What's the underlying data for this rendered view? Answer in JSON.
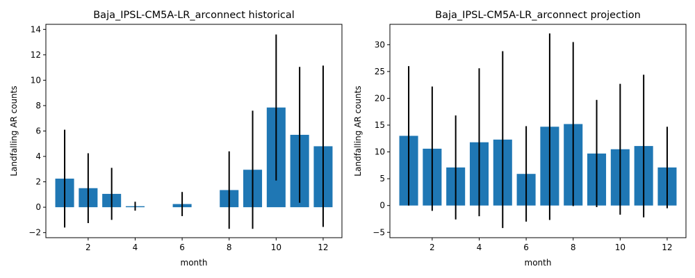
{
  "chart_data": [
    {
      "type": "bar",
      "title": "Baja_IPSL-CM5A-LR_arconnect historical",
      "xlabel": "month",
      "ylabel": "Landfalling AR counts",
      "xlim": [
        0.2,
        12.8
      ],
      "ylim": [
        -2.4,
        14.4
      ],
      "xticks": [
        2,
        4,
        6,
        8,
        10,
        12
      ],
      "yticks": [
        -2,
        0,
        2,
        4,
        6,
        8,
        10,
        12,
        14
      ],
      "x": [
        1,
        2,
        3,
        4,
        5,
        6,
        7,
        8,
        9,
        10,
        11,
        12
      ],
      "values": [
        2.25,
        1.5,
        1.05,
        0.08,
        0.0,
        0.25,
        0.0,
        1.35,
        2.95,
        7.85,
        5.7,
        4.8
      ],
      "errors": [
        3.85,
        2.75,
        2.05,
        0.35,
        0.0,
        0.95,
        0.0,
        3.05,
        4.65,
        5.75,
        5.35,
        6.35
      ],
      "bar_color": "#1f77b4",
      "error_color": "#000000",
      "grid": false
    },
    {
      "type": "bar",
      "title": "Baja_IPSL-CM5A-LR_arconnect projection",
      "xlabel": "month",
      "ylabel": "Landfalling AR counts",
      "xlim": [
        0.2,
        12.8
      ],
      "ylim": [
        -6.0,
        33.8
      ],
      "xticks": [
        2,
        4,
        6,
        8,
        10,
        12
      ],
      "yticks": [
        -5,
        0,
        5,
        10,
        15,
        20,
        25,
        30
      ],
      "x": [
        1,
        2,
        3,
        4,
        5,
        6,
        7,
        8,
        9,
        10,
        11,
        12
      ],
      "values": [
        13.0,
        10.6,
        7.1,
        11.8,
        12.3,
        5.9,
        14.7,
        15.2,
        9.7,
        10.5,
        11.1,
        7.1
      ],
      "errors": [
        13.0,
        11.6,
        9.7,
        13.8,
        16.5,
        8.9,
        17.4,
        15.3,
        10.0,
        12.2,
        13.3,
        7.6
      ],
      "bar_color": "#1f77b4",
      "error_color": "#000000",
      "grid": false
    }
  ]
}
